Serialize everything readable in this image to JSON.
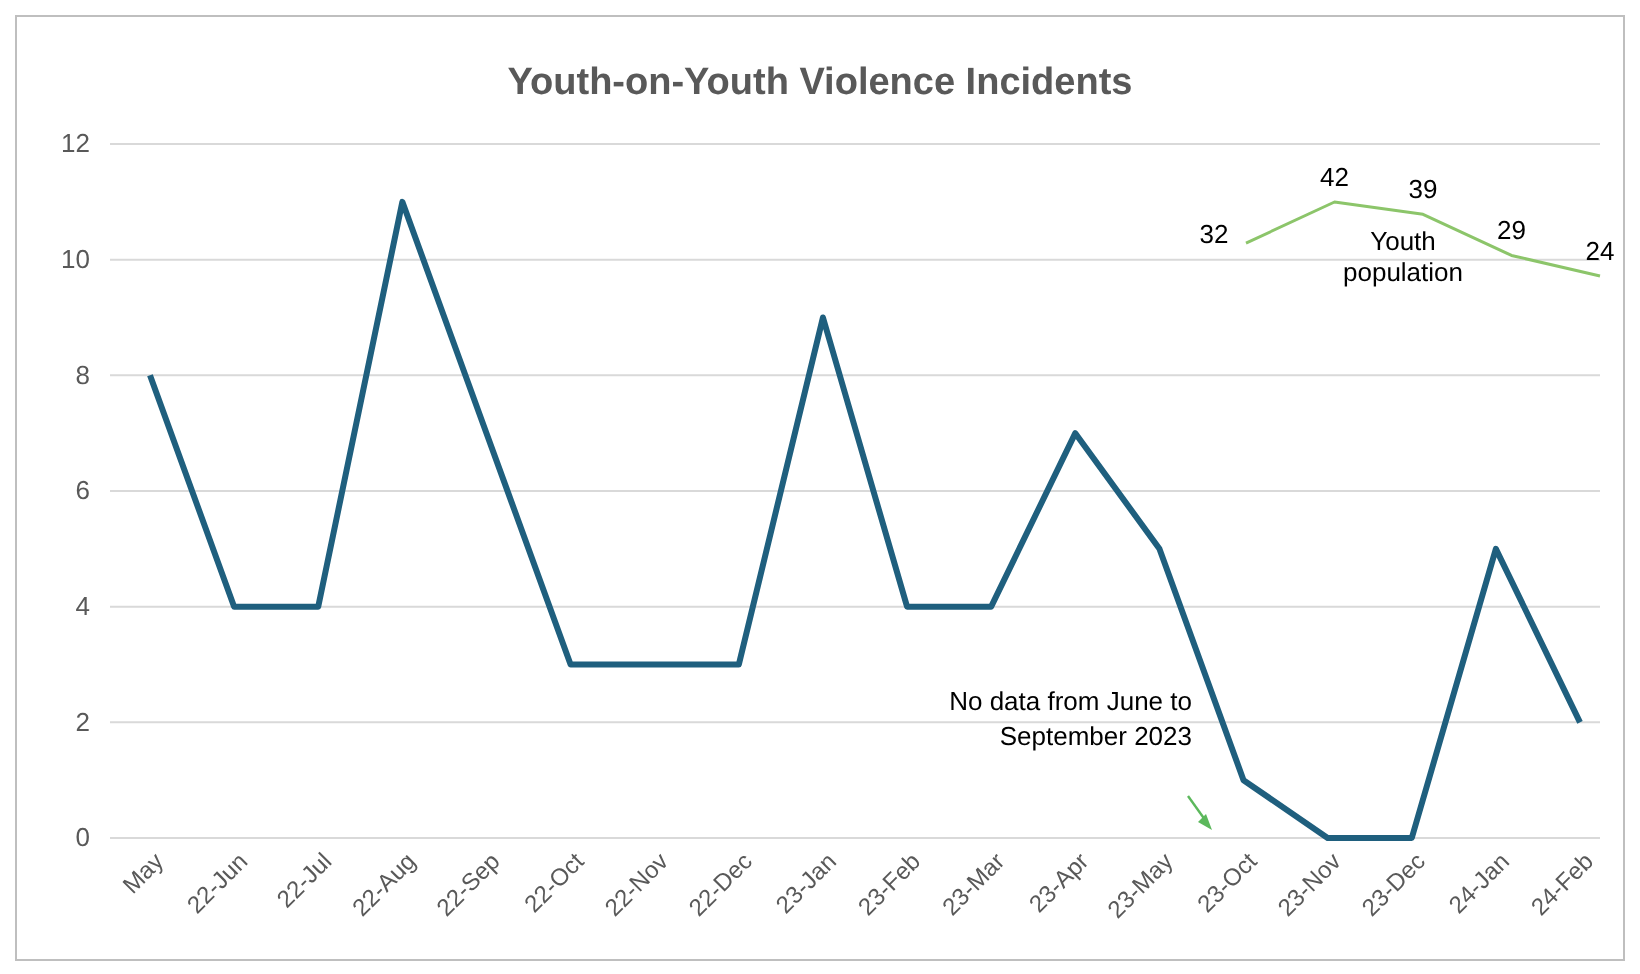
{
  "chart_data": [
    {
      "type": "line",
      "title": "Youth-on-Youth Violence Incidents",
      "categories": [
        "May",
        "22-Jun",
        "22-Jul",
        "22-Aug",
        "22-Sep",
        "22-Oct",
        "22-Nov",
        "22-Dec",
        "23-Jan",
        "23-Feb",
        "23-Mar",
        "23-Apr",
        "23-May",
        "23-Oct",
        "23-Nov",
        "23-Dec",
        "24-Jan",
        "24-Feb"
      ],
      "values": [
        8,
        4,
        4,
        11,
        7,
        3,
        3,
        3,
        9,
        4,
        4,
        7,
        5,
        1,
        0,
        0,
        5,
        2
      ],
      "color": "#1f5f7e",
      "ylim": [
        0,
        12
      ],
      "yticks": [
        0,
        2,
        4,
        6,
        8,
        10,
        12
      ],
      "grid": "y",
      "annotations": [
        "No data from June to September 2023"
      ]
    },
    {
      "type": "line",
      "categories": [
        null,
        null,
        null,
        null,
        null
      ],
      "values": [
        32,
        42,
        39,
        29,
        24
      ],
      "color": "#8cc56a",
      "data_labels": true,
      "annotations": [
        "Youth population"
      ]
    }
  ]
}
